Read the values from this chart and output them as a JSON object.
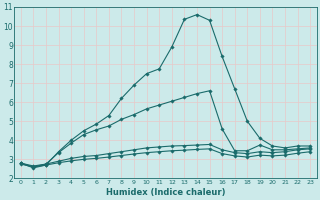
{
  "xlabel": "Humidex (Indice chaleur)",
  "bg_color": "#cceaea",
  "grid_color": "#e8c8c8",
  "line_color": "#1a6b6b",
  "xlim": [
    -0.5,
    23.5
  ],
  "ylim": [
    2,
    11
  ],
  "xticks": [
    0,
    1,
    2,
    3,
    4,
    5,
    6,
    7,
    8,
    9,
    10,
    11,
    12,
    13,
    14,
    15,
    16,
    17,
    18,
    19,
    20,
    21,
    22,
    23
  ],
  "yticks": [
    2,
    3,
    4,
    5,
    6,
    7,
    8,
    9,
    10,
    11
  ],
  "series": [
    {
      "x": [
        0,
        1,
        2,
        3,
        4,
        5,
        6,
        7,
        8,
        9,
        10,
        11,
        12,
        13,
        14,
        15,
        16,
        17,
        18,
        19,
        20,
        21,
        22,
        23
      ],
      "y": [
        2.8,
        2.55,
        2.7,
        3.4,
        4.0,
        4.5,
        4.85,
        5.3,
        6.2,
        6.9,
        7.5,
        7.75,
        8.9,
        10.35,
        10.6,
        10.3,
        8.4,
        6.7,
        5.0,
        4.1,
        3.7,
        3.6,
        3.7,
        3.7
      ]
    },
    {
      "x": [
        0,
        1,
        2,
        3,
        4,
        5,
        6,
        7,
        8,
        9,
        10,
        11,
        12,
        13,
        14,
        15,
        16,
        17,
        18,
        19,
        20,
        21,
        22,
        23
      ],
      "y": [
        2.8,
        2.6,
        2.75,
        3.35,
        3.85,
        4.3,
        4.55,
        4.75,
        5.1,
        5.35,
        5.65,
        5.85,
        6.05,
        6.25,
        6.45,
        6.6,
        4.6,
        3.45,
        3.45,
        3.75,
        3.5,
        3.5,
        3.55,
        3.6
      ]
    },
    {
      "x": [
        0,
        1,
        2,
        3,
        4,
        5,
        6,
        7,
        8,
        9,
        10,
        11,
        12,
        13,
        14,
        15,
        16,
        17,
        18,
        19,
        20,
        21,
        22,
        23
      ],
      "y": [
        2.8,
        2.65,
        2.75,
        2.9,
        3.05,
        3.15,
        3.2,
        3.3,
        3.4,
        3.5,
        3.6,
        3.65,
        3.7,
        3.72,
        3.75,
        3.78,
        3.5,
        3.35,
        3.3,
        3.4,
        3.35,
        3.4,
        3.5,
        3.55
      ]
    },
    {
      "x": [
        0,
        1,
        2,
        3,
        4,
        5,
        6,
        7,
        8,
        9,
        10,
        11,
        12,
        13,
        14,
        15,
        16,
        17,
        18,
        19,
        20,
        21,
        22,
        23
      ],
      "y": [
        2.75,
        2.6,
        2.7,
        2.82,
        2.92,
        3.0,
        3.05,
        3.12,
        3.2,
        3.28,
        3.35,
        3.4,
        3.45,
        3.48,
        3.52,
        3.55,
        3.3,
        3.18,
        3.12,
        3.22,
        3.18,
        3.22,
        3.32,
        3.4
      ]
    }
  ]
}
